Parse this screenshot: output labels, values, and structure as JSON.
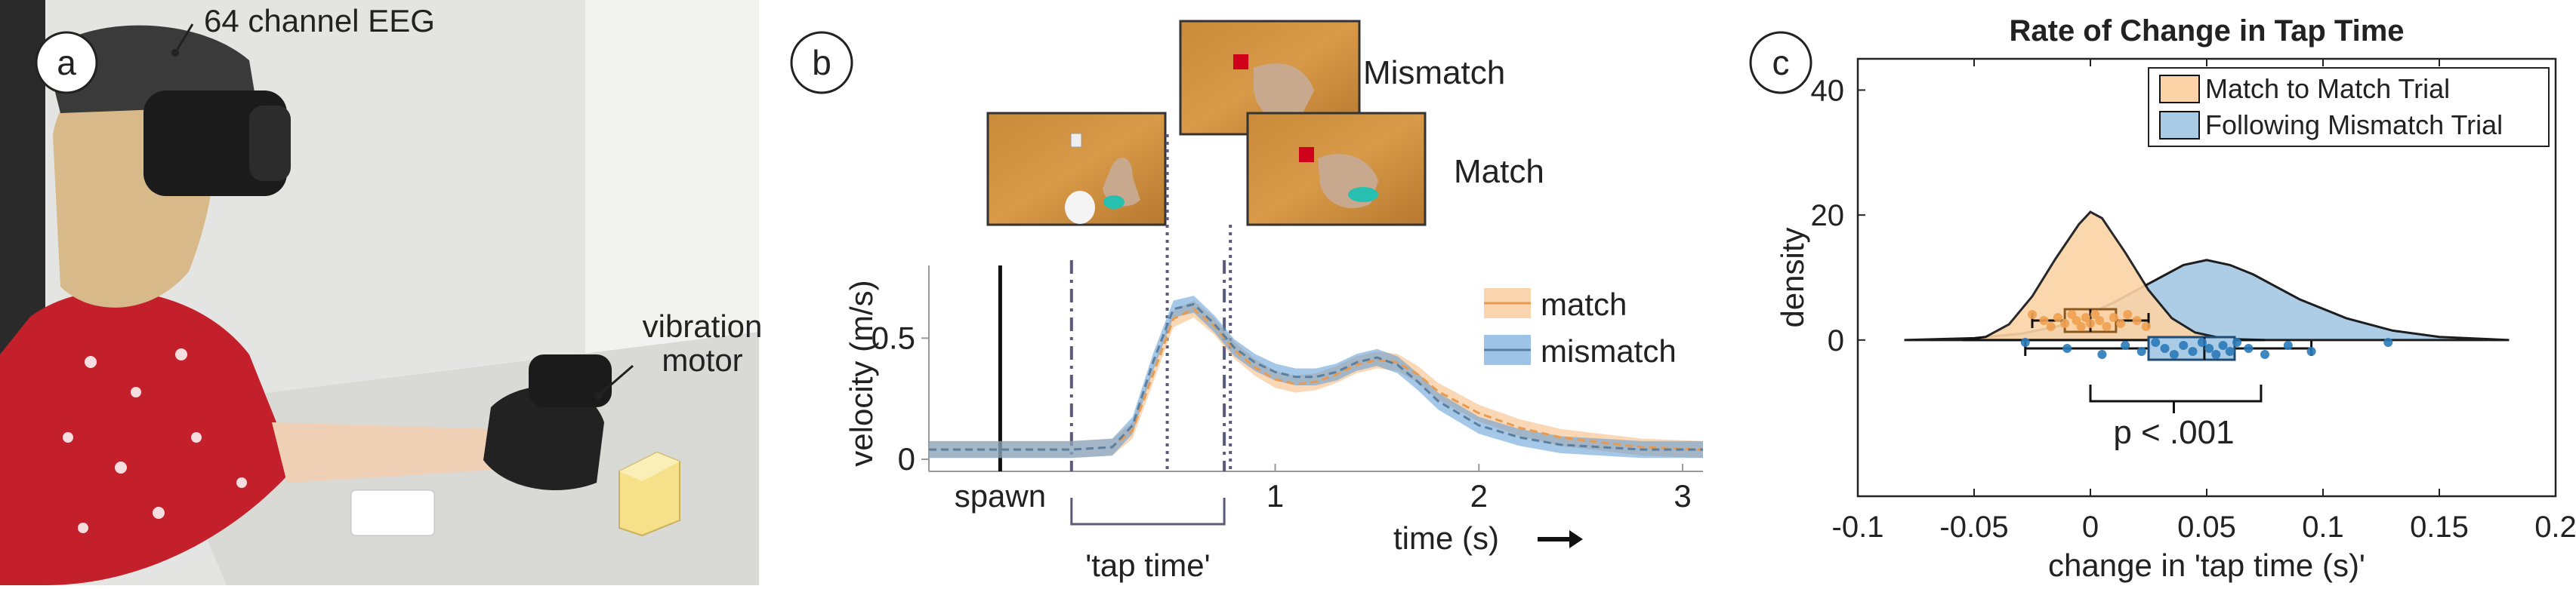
{
  "panel_a": {
    "letter": "a",
    "eeg_label": "64 channel EEG",
    "motor_label_1": "vibration",
    "motor_label_2": "motor"
  },
  "panel_b": {
    "letter": "b",
    "mismatch_label": "Mismatch",
    "match_label": "Match",
    "spawn_label": "spawn",
    "tap_time_label": "'tap time'",
    "chart_data": {
      "type": "line",
      "xlabel": "time (s)",
      "ylabel": "velocity (m/s)",
      "x_ticks": [
        "1",
        "2",
        "3"
      ],
      "y_ticks": [
        "0",
        "0.5"
      ],
      "xlim": [
        -0.7,
        3.1
      ],
      "ylim": [
        -0.05,
        0.8
      ],
      "legend_position": "top-right",
      "series": [
        {
          "name": "match",
          "color": "#f6b87a",
          "x": [
            -0.7,
            -0.3,
            0.0,
            0.2,
            0.3,
            0.4,
            0.5,
            0.6,
            0.7,
            0.8,
            0.9,
            1.0,
            1.1,
            1.2,
            1.3,
            1.4,
            1.5,
            1.6,
            1.7,
            1.8,
            2.0,
            2.2,
            2.4,
            2.6,
            2.8,
            3.1
          ],
          "values": [
            0.04,
            0.04,
            0.04,
            0.05,
            0.12,
            0.35,
            0.58,
            0.62,
            0.55,
            0.45,
            0.38,
            0.33,
            0.31,
            0.32,
            0.35,
            0.39,
            0.41,
            0.4,
            0.35,
            0.28,
            0.19,
            0.13,
            0.09,
            0.07,
            0.05,
            0.04
          ]
        },
        {
          "name": "mismatch",
          "color": "#5b9bd5",
          "x": [
            -0.7,
            -0.3,
            0.0,
            0.2,
            0.3,
            0.4,
            0.5,
            0.6,
            0.7,
            0.8,
            0.9,
            1.0,
            1.1,
            1.2,
            1.3,
            1.4,
            1.5,
            1.6,
            1.7,
            1.8,
            2.0,
            2.2,
            2.4,
            2.6,
            2.8,
            3.1
          ],
          "values": [
            0.04,
            0.04,
            0.04,
            0.05,
            0.14,
            0.4,
            0.62,
            0.64,
            0.56,
            0.46,
            0.4,
            0.36,
            0.34,
            0.34,
            0.36,
            0.4,
            0.42,
            0.39,
            0.32,
            0.24,
            0.14,
            0.09,
            0.06,
            0.05,
            0.04,
            0.04
          ]
        }
      ],
      "markers": {
        "spawn": -0.35,
        "tap_start": 0.0,
        "tap_end": 0.75,
        "mismatch_event": 0.47,
        "match_event": 0.78
      }
    }
  },
  "panel_c": {
    "letter": "c",
    "p_label": "p < .001",
    "chart_data": {
      "type": "area",
      "title": "Rate of Change in Tap Time",
      "xlabel": "change in 'tap time (s)'",
      "ylabel": "density",
      "x_ticks": [
        "-0.1",
        "-0.05",
        "0",
        "0.05",
        "0.1",
        "0.15",
        "0.2"
      ],
      "y_ticks": [
        "0",
        "20",
        "40"
      ],
      "xlim": [
        -0.1,
        0.2
      ],
      "ylim": [
        -25,
        45
      ],
      "legend_position": "top-right",
      "series": [
        {
          "name": "Match to Match Trial",
          "color": "#fbd3a6",
          "x": [
            -0.055,
            -0.045,
            -0.035,
            -0.025,
            -0.015,
            -0.005,
            0.0,
            0.005,
            0.015,
            0.025,
            0.035,
            0.045,
            0.055,
            0.065,
            0.075
          ],
          "values": [
            0,
            0.5,
            2.5,
            7,
            13,
            18.5,
            20.5,
            19.5,
            14,
            8,
            3.5,
            1.2,
            0.4,
            0.1,
            0
          ],
          "box": {
            "q1": -0.011,
            "median": 0.0,
            "q3": 0.011,
            "whisker_low": -0.025,
            "whisker_high": 0.025
          },
          "points": [
            -0.025,
            -0.02,
            -0.017,
            -0.014,
            -0.011,
            -0.008,
            -0.006,
            -0.004,
            -0.002,
            0.0,
            0.002,
            0.004,
            0.007,
            0.01,
            0.013,
            0.016,
            0.02,
            0.024
          ]
        },
        {
          "name": "Following Mismatch Trial",
          "color": "#a9cbe6",
          "x": [
            -0.08,
            -0.05,
            -0.03,
            -0.01,
            0.01,
            0.03,
            0.04,
            0.05,
            0.06,
            0.07,
            0.09,
            0.11,
            0.13,
            0.15,
            0.18
          ],
          "values": [
            0,
            0.3,
            1,
            2.5,
            6,
            10,
            12,
            12.8,
            12,
            10.5,
            6.5,
            3.5,
            1.5,
            0.5,
            0
          ],
          "box": {
            "q1": 0.025,
            "median": 0.049,
            "q3": 0.062,
            "whisker_low": -0.028,
            "whisker_high": 0.095
          },
          "points": [
            -0.028,
            -0.01,
            0.005,
            0.015,
            0.022,
            0.028,
            0.032,
            0.036,
            0.04,
            0.044,
            0.048,
            0.051,
            0.054,
            0.057,
            0.06,
            0.063,
            0.068,
            0.075,
            0.085,
            0.095,
            0.128
          ]
        }
      ]
    }
  }
}
